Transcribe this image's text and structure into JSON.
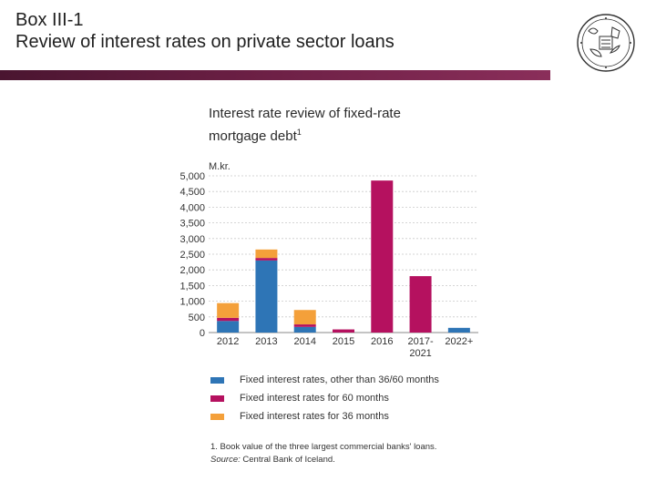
{
  "slide": {
    "title_line1": "Box III-1",
    "title_line2": "Review of interest rates on private sector loans"
  },
  "colors": {
    "rule": "#6b1f44",
    "blue": "#2e75b6",
    "magenta": "#b5115f",
    "orange": "#f4a03a"
  },
  "logo": {
    "icon": "central-bank-seal-icon"
  },
  "chart_data": {
    "type": "bar",
    "stacked": true,
    "title_line1": "Interest rate review of fixed-rate",
    "title_line2": "mortgage debt",
    "title_sup": "1",
    "unit": "M.kr.",
    "categories": [
      "2012",
      "2013",
      "2014",
      "2015",
      "2016",
      "2017-\n2021",
      "2022+"
    ],
    "series": [
      {
        "name": "Fixed interest rates, other than 36/60 months",
        "color": "#2e75b6",
        "values": [
          370,
          2300,
          180,
          0,
          0,
          0,
          150
        ]
      },
      {
        "name": "Fixed interest rates for 60 months",
        "color": "#b5115f",
        "values": [
          100,
          80,
          80,
          100,
          4850,
          1800,
          0
        ]
      },
      {
        "name": "Fixed interest rates for 36 months",
        "color": "#f4a03a",
        "values": [
          470,
          270,
          460,
          0,
          0,
          0,
          0
        ]
      }
    ],
    "ylim": [
      0,
      5000
    ],
    "yticks": [
      0,
      500,
      1000,
      1500,
      2000,
      2500,
      3000,
      3500,
      4000,
      4500,
      5000
    ],
    "ytick_labels": [
      "0",
      "500",
      "1,000",
      "1,500",
      "2,000",
      "2,500",
      "3,000",
      "3,500",
      "4,000",
      "4,500",
      "5,000"
    ],
    "grid": true,
    "legend_position": "bottom"
  },
  "footnote": {
    "note": "1. Book value of the three largest commercial banks' loans.",
    "source_label": "Source:",
    "source_text": " Central Bank of Iceland."
  }
}
